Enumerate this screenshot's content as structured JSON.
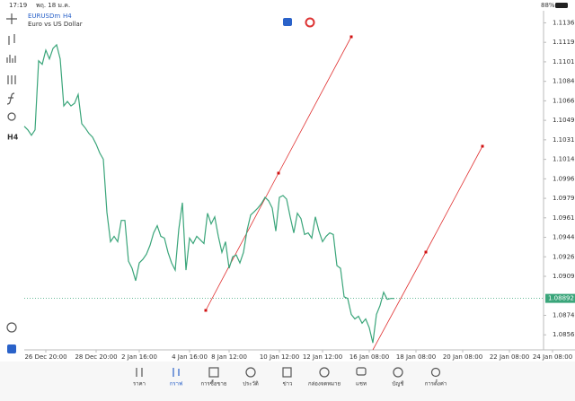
{
  "status_bar": {
    "time": "17:19",
    "date": "พฤ. 18 ม.ค.",
    "battery": "88%"
  },
  "chart_data": {
    "type": "line",
    "symbol": "EURUSDm",
    "timeframe": "H4",
    "description": "Euro vs US Dollar",
    "color": "#3aa57a",
    "values": [
      1.10436,
      1.10404,
      1.10356,
      1.10404,
      1.11025,
      1.10993,
      1.1112,
      1.11041,
      1.11136,
      1.11168,
      1.11041,
      1.10619,
      1.10659,
      1.10619,
      1.10643,
      1.10722,
      1.1046,
      1.1042,
      1.10372,
      1.1034,
      1.10276,
      1.10197,
      1.10141,
      1.09664,
      1.09401,
      1.09449,
      1.09401,
      1.09592,
      1.09592,
      1.09226,
      1.09162,
      1.09051,
      1.0921,
      1.09242,
      1.09289,
      1.09369,
      1.0948,
      1.09544,
      1.09449,
      1.09433,
      1.09305,
      1.0921,
      1.09146,
      1.09512,
      1.09751,
      1.09146,
      1.09433,
      1.09385,
      1.09449,
      1.09417,
      1.09385,
      1.09656,
      1.0956,
      1.09624,
      1.09449,
      1.09305,
      1.09401,
      1.09162,
      1.09266,
      1.09281,
      1.0921,
      1.09305,
      1.09504,
      1.0964,
      1.09671,
      1.09703,
      1.09743,
      1.09799,
      1.09767,
      1.09703,
      1.09496,
      1.09799,
      1.09815,
      1.09783,
      1.09624,
      1.0948,
      1.09656,
      1.09608,
      1.09465,
      1.0948,
      1.09433,
      1.09624,
      1.09496,
      1.09401,
      1.09449,
      1.0948,
      1.09465,
      1.09186,
      1.09162,
      1.08907,
      1.08891,
      1.08748,
      1.08708,
      1.08732,
      1.08669,
      1.08708,
      1.08629,
      1.08493,
      1.08748,
      1.08828,
      1.08947,
      1.08883,
      1.08891,
      1.08891
    ],
    "current_price": 1.08892,
    "current_price_color": "#3aa57a",
    "ylim": [
      1.0843,
      1.1157
    ],
    "yticks": [
      1.11365,
      1.1119,
      1.11015,
      1.1084,
      1.10665,
      1.1049,
      1.10315,
      1.1014,
      1.09965,
      1.0979,
      1.09615,
      1.0944,
      1.09265,
      1.0909,
      1.0874,
      1.08565
    ],
    "xlim": [
      0,
      144.5
    ],
    "xticks": [
      {
        "value": 6,
        "label": "26 Dec 20:00"
      },
      {
        "value": 20,
        "label": "28 Dec 20:00"
      },
      {
        "value": 32,
        "label": "2 Jan 16:00"
      },
      {
        "value": 46,
        "label": "4 Jan 16:00"
      },
      {
        "value": 57,
        "label": "8 Jan 12:00"
      },
      {
        "value": 71,
        "label": "10 Jan 12:00"
      },
      {
        "value": 83,
        "label": "12 Jan 12:00"
      },
      {
        "value": 96,
        "label": "16 Jan 08:00"
      },
      {
        "value": 109,
        "label": "18 Jan 08:00"
      },
      {
        "value": 122,
        "label": "20 Jan 08:00"
      },
      {
        "value": 135,
        "label": "22 Jan 08:00"
      },
      {
        "value": 147,
        "label": "24 Jan 08:00"
      }
    ]
  },
  "nav": [
    "ราคา",
    "กราฟ",
    "การซื้อขาย",
    "ประวัติ",
    "ข่าว",
    "กล่องจดหมาย",
    "แชท",
    "บัญชี",
    "การตั้งค่า"
  ]
}
